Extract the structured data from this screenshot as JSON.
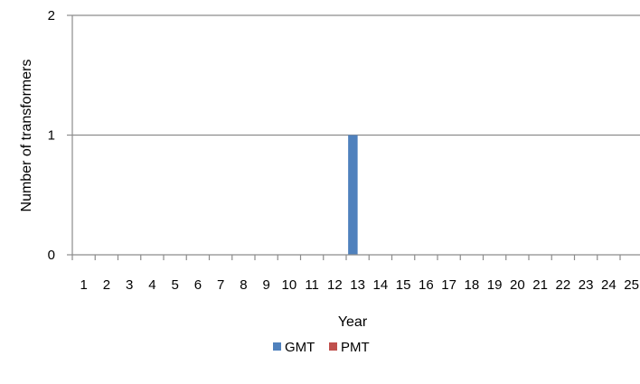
{
  "chart_data": {
    "type": "bar",
    "categories": [
      "1",
      "2",
      "3",
      "4",
      "5",
      "6",
      "7",
      "8",
      "9",
      "10",
      "11",
      "12",
      "13",
      "14",
      "15",
      "16",
      "17",
      "18",
      "19",
      "20",
      "21",
      "22",
      "23",
      "24",
      "25"
    ],
    "series": [
      {
        "name": "GMT",
        "color": "#4f81bd",
        "values": [
          0,
          0,
          0,
          0,
          0,
          0,
          0,
          0,
          0,
          0,
          0,
          0,
          1,
          0,
          0,
          0,
          0,
          0,
          0,
          0,
          0,
          0,
          0,
          0,
          0
        ]
      },
      {
        "name": "PMT",
        "color": "#c0504d",
        "values": [
          0,
          0,
          0,
          0,
          0,
          0,
          0,
          0,
          0,
          0,
          0,
          0,
          0,
          0,
          0,
          0,
          0,
          0,
          0,
          0,
          0,
          0,
          0,
          0,
          0
        ]
      }
    ],
    "yticks": [
      "0",
      "1",
      "2"
    ],
    "ylim": [
      0,
      2
    ],
    "xlabel": "Year",
    "ylabel": "Number of transformers",
    "grid": true,
    "legend_position": "bottom"
  }
}
